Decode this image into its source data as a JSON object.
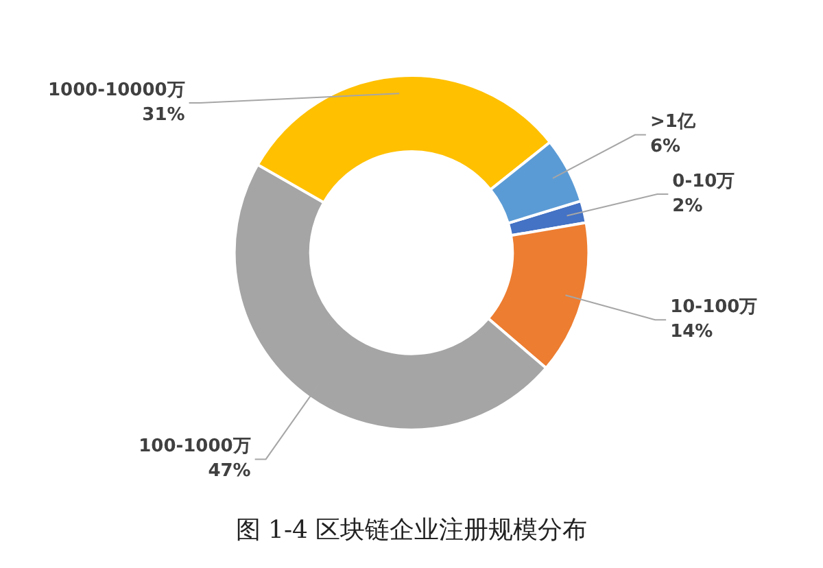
{
  "chart_data": {
    "type": "donut",
    "title": "图 1-4 区块链企业注册规模分布",
    "categories": [
      "0-10万",
      "10-100万",
      "100-1000万",
      "1000-10000万",
      ">1亿"
    ],
    "values": [
      2,
      14,
      47,
      31,
      6
    ],
    "value_labels": [
      "2%",
      "14%",
      "47%",
      "31%",
      "6%"
    ],
    "colors": [
      "#4472c4",
      "#ed7d31",
      "#a5a5a5",
      "#ffc000",
      "#5b9bd5"
    ],
    "legend": false
  }
}
